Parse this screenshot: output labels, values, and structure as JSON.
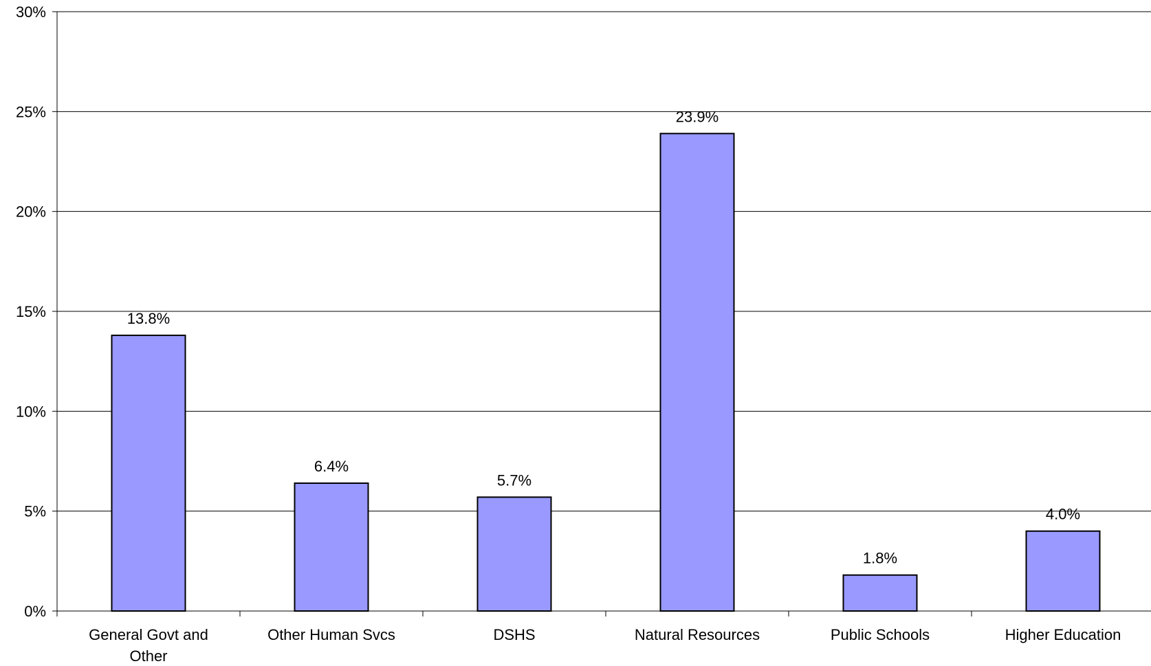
{
  "chart_data": {
    "type": "bar",
    "categories": [
      [
        "General Govt and",
        "Other"
      ],
      [
        "Other Human Svcs"
      ],
      [
        "DSHS"
      ],
      [
        "Natural Resources"
      ],
      [
        "Public Schools"
      ],
      [
        "Higher Education"
      ]
    ],
    "values": [
      13.8,
      6.4,
      5.7,
      23.9,
      1.8,
      4.0
    ],
    "data_labels": [
      "13.8%",
      "6.4%",
      "5.7%",
      "23.9%",
      "1.8%",
      "4.0%"
    ],
    "y_ticks": [
      0,
      5,
      10,
      15,
      20,
      25,
      30
    ],
    "y_tick_labels": [
      "0%",
      "5%",
      "10%",
      "15%",
      "20%",
      "25%",
      "30%"
    ],
    "ylim": [
      0,
      30
    ],
    "grid": true,
    "bar_color": "#9999ff",
    "bar_edge_color": "#000000"
  }
}
